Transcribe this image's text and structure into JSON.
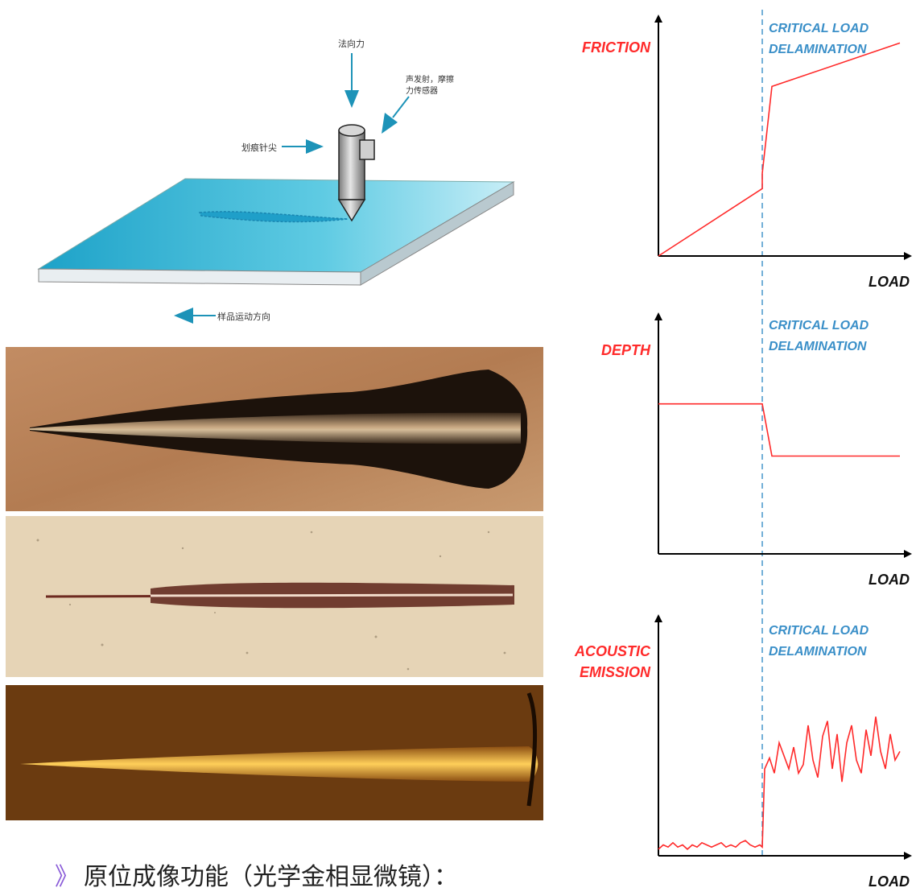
{
  "schematic": {
    "label_normal_force": "法向力",
    "label_sensor": "声发射，摩擦力传感器",
    "label_sensor_line1": "声发射，摩擦",
    "label_sensor_line2": "力传感器",
    "label_stylus_tip": "划痕针尖",
    "label_motion": "样品运动方向"
  },
  "micrographs": [
    {
      "name": "scratch-micrograph-1",
      "background": "#b8835a"
    },
    {
      "name": "scratch-micrograph-2",
      "background": "#e8d8bc"
    },
    {
      "name": "scratch-micrograph-3",
      "background": "#6b3d12"
    }
  ],
  "caption": {
    "marker": "》",
    "text": "原位成像功能（光学金相显微镜）："
  },
  "colors": {
    "curve": "#ff2a2a",
    "critical_line": "#3a8fc8",
    "critical_text": "#3a8fc8",
    "label_red": "#ff2a2a",
    "axis": "#000000",
    "plate": "#38b9d6"
  },
  "chart_data": [
    {
      "type": "line",
      "ylabel": "FRICTION",
      "xlabel": "LOAD",
      "annotation": [
        "CRITICAL LOAD",
        "DELAMINATION"
      ],
      "critical_x": 0.43,
      "series": [
        {
          "x": [
            0,
            0.43,
            0.43,
            0.47,
            1.0
          ],
          "y": [
            0,
            0.31,
            0.38,
            0.78,
            0.98
          ]
        }
      ],
      "xlim": [
        0,
        1
      ],
      "ylim": [
        0,
        1
      ]
    },
    {
      "type": "line",
      "ylabel": "DEPTH",
      "xlabel": "LOAD",
      "annotation": [
        "CRITICAL LOAD",
        "DELAMINATION"
      ],
      "critical_x": 0.43,
      "series": [
        {
          "x": [
            0,
            0.43,
            0.47,
            1.0
          ],
          "y": [
            0.69,
            0.69,
            0.45,
            0.45
          ]
        }
      ],
      "xlim": [
        0,
        1
      ],
      "ylim": [
        0,
        1
      ]
    },
    {
      "type": "line",
      "ylabel": "ACOUSTIC EMISSION",
      "ylabel_lines": [
        "ACOUSTIC",
        "EMISSION"
      ],
      "xlabel": "LOAD",
      "annotation": [
        "CRITICAL LOAD",
        "DELAMINATION"
      ],
      "critical_x": 0.43,
      "series": [
        {
          "x": [
            0,
            0.02,
            0.04,
            0.06,
            0.08,
            0.1,
            0.12,
            0.14,
            0.16,
            0.18,
            0.2,
            0.22,
            0.24,
            0.26,
            0.28,
            0.3,
            0.32,
            0.34,
            0.36,
            0.38,
            0.4,
            0.42,
            0.43,
            0.44,
            0.46,
            0.48,
            0.5,
            0.52,
            0.54,
            0.56,
            0.58,
            0.6,
            0.62,
            0.64,
            0.66,
            0.68,
            0.7,
            0.72,
            0.74,
            0.76,
            0.78,
            0.8,
            0.82,
            0.84,
            0.86,
            0.88,
            0.9,
            0.92,
            0.94,
            0.96,
            0.98,
            1.0
          ],
          "y": [
            0.03,
            0.05,
            0.04,
            0.06,
            0.04,
            0.05,
            0.03,
            0.05,
            0.04,
            0.06,
            0.05,
            0.04,
            0.05,
            0.06,
            0.04,
            0.05,
            0.04,
            0.06,
            0.07,
            0.05,
            0.04,
            0.05,
            0.04,
            0.4,
            0.45,
            0.38,
            0.52,
            0.46,
            0.4,
            0.5,
            0.38,
            0.42,
            0.6,
            0.44,
            0.36,
            0.55,
            0.62,
            0.4,
            0.56,
            0.34,
            0.52,
            0.6,
            0.44,
            0.38,
            0.58,
            0.46,
            0.64,
            0.48,
            0.4,
            0.56,
            0.44,
            0.48
          ]
        }
      ],
      "xlim": [
        0,
        1
      ],
      "ylim": [
        0,
        1
      ]
    }
  ]
}
